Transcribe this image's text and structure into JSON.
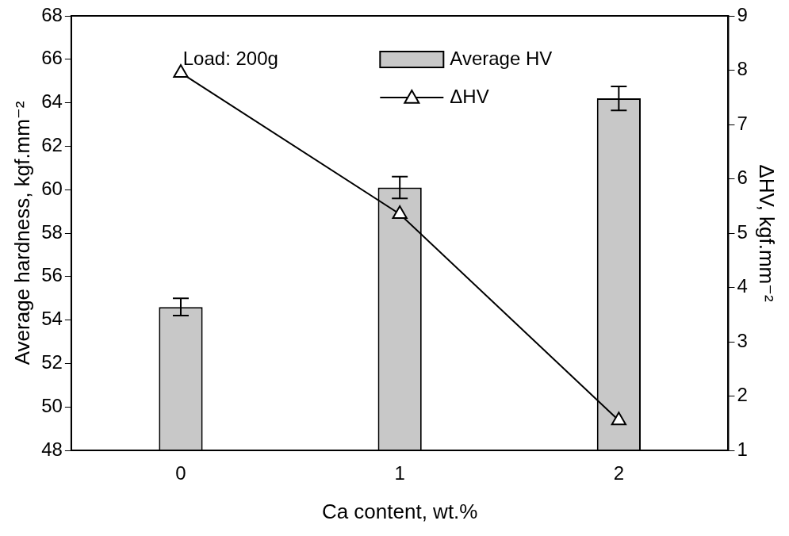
{
  "chart_data": {
    "type": "bar",
    "categories": [
      "0",
      "1",
      "2"
    ],
    "x_label": "Ca content, wt.%",
    "y_label": "Average hardness, kgf.mm⁻²",
    "y2_label": "ΔHV, kgf.mm⁻²",
    "annotation": "Load: 200g",
    "series": [
      {
        "name": "Average HV",
        "type": "bar",
        "color": "#c8c8c8",
        "values": [
          54.6,
          60.1,
          64.2
        ],
        "errors": [
          0.4,
          0.5,
          0.55
        ]
      },
      {
        "name": "ΔHV",
        "type": "line",
        "color": "#000000",
        "marker": "triangle",
        "line_style": "solid",
        "axis": "y2",
        "values": [
          7.95,
          5.35,
          1.55
        ]
      }
    ],
    "ylim": [
      48,
      68
    ],
    "yticks": [
      48,
      50,
      52,
      54,
      56,
      58,
      60,
      62,
      64,
      66,
      68
    ],
    "y2lim": [
      1,
      9
    ],
    "y2ticks": [
      1,
      2,
      3,
      4,
      5,
      6,
      7,
      8,
      9
    ],
    "grid": false,
    "legend": "upper right"
  }
}
